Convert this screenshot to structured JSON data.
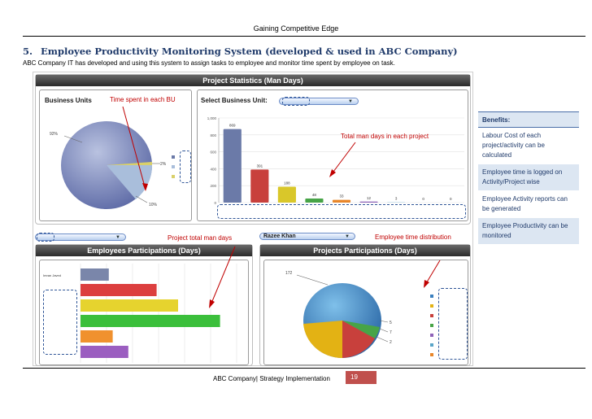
{
  "header": {
    "title": "Gaining Competitive Edge"
  },
  "section": {
    "number": "5.",
    "title": "Employee Productivity Monitoring System (developed & used in ABC Company)",
    "intro": "ABC Company IT has developed and using this system to assign tasks to employee and monitor time spent by employee on task."
  },
  "dashboard": {
    "project_stats": {
      "title": "Project Statistics (Man Days)",
      "business_units_label": "Business Units",
      "select_label": "Select Business Unit:",
      "pie_labels": {
        "main": "92%",
        "small": "2%",
        "mid": "10%"
      },
      "bar_ticks": [
        "1,000",
        "800",
        "600",
        "400",
        "200",
        "0"
      ],
      "bar_values": [
        869,
        391,
        188,
        48,
        33,
        12,
        3,
        0,
        0
      ],
      "bar_labels": [
        "869",
        "391",
        "188",
        "48",
        "33",
        "12",
        "3",
        "0",
        "0"
      ],
      "bar_colors": [
        "#6b7aa8",
        "#c8403c",
        "#d9c72a",
        "#47a447",
        "#e8862a",
        "#8e62b8",
        "#5aa5c8",
        "#999999",
        "#999999"
      ]
    },
    "employees": {
      "title": "Employees Participations (Days)",
      "first_name": "Imran Javed",
      "bar_colors": [
        "#7a86aa",
        "#dc3e3e",
        "#e6d32e",
        "#3bbf3b",
        "#f0912e",
        "#9b5ec0"
      ],
      "bar_values": [
        0.29,
        0.78,
        1.0,
        1.43,
        0.33,
        0.49
      ]
    },
    "projects": {
      "title": "Projects Participations (Days)",
      "selected_employee": "Razee Khan",
      "pie_top_label": "172",
      "pie_side_labels": [
        "5",
        "7",
        "2"
      ],
      "legend_colors": [
        "#3a7fbf",
        "#e3b214",
        "#c8403c",
        "#47a447",
        "#8e62b8",
        "#5aa5c8",
        "#e8862a"
      ]
    },
    "annotations": {
      "time_bu": "Time spent in each BU",
      "man_days_project": "Total man days in each project",
      "project_total": "Project total man days",
      "employee_distribution": "Employee time distribution"
    }
  },
  "benefits": {
    "title": "Benefits:",
    "items": [
      "Labour Cost of each project/activity can be calculated",
      "Employee time is logged on Activity/Project wise",
      "Employee Activity reports can be generated",
      "Employee Productivity can be monitored"
    ]
  },
  "footer": {
    "text": "ABC Company| Strategy Implementation",
    "page": "19"
  }
}
